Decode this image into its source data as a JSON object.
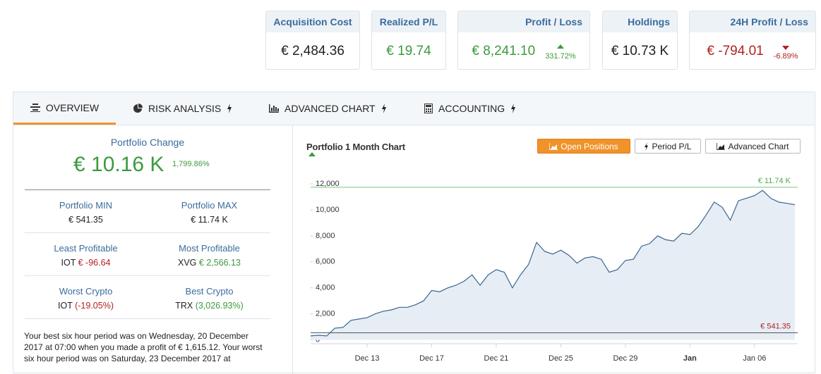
{
  "cards": [
    {
      "title": "Acquisition Cost",
      "value": "€ 2,484.36",
      "tone": "neutral"
    },
    {
      "title": "Realized P/L",
      "value": "€ 19.74",
      "tone": "up"
    },
    {
      "title": "Profit / Loss",
      "value": "€ 8,241.10",
      "change": "331.72%",
      "tone": "up"
    },
    {
      "title": "Holdings",
      "value": "€ 10.73 K",
      "tone": "neutral"
    },
    {
      "title": "24H Profit / Loss",
      "value": "€ -794.01",
      "change": "-6.89%",
      "tone": "down"
    }
  ],
  "tabs": [
    {
      "label": "OVERVIEW",
      "active": true
    },
    {
      "label": "RISK ANALYSIS",
      "active": false
    },
    {
      "label": "ADVANCED CHART",
      "active": false
    },
    {
      "label": "ACCOUNTING",
      "active": false
    }
  ],
  "overview": {
    "change_title": "Portfolio Change",
    "change_value": "€ 10.16 K",
    "change_percent": "1,799.86%",
    "stats": [
      {
        "label": "Portfolio MIN",
        "value": "€ 541.35"
      },
      {
        "label": "Portfolio MAX",
        "value": "€ 11.74 K"
      },
      {
        "label": "Least Profitable",
        "coin": "IOT",
        "value": "€ -96.64",
        "tone": "down"
      },
      {
        "label": "Most Profitable",
        "coin": "XVG",
        "value": "€ 2,566.13",
        "tone": "up"
      },
      {
        "label": "Worst Crypto",
        "coin": "IOT",
        "value": "(-19.05%)",
        "tone": "down"
      },
      {
        "label": "Best Crypto",
        "coin": "TRX",
        "value": "(3,026.93%)",
        "tone": "up"
      }
    ],
    "summary": "Your best six hour period was on Wednesday, 20 December 2017 at 07:00 when you made a profit of € 1,615.12. Your worst six hour period was on Saturday, 23 December 2017 at"
  },
  "chart_buttons": [
    {
      "label": "Open Positions",
      "active": true
    },
    {
      "label": "Period P/L",
      "active": false
    },
    {
      "label": "Advanced Chart",
      "active": false
    }
  ],
  "chart_data": {
    "type": "area",
    "title": "Portfolio 1 Month Chart",
    "color": "#3b6591",
    "fill": "#e6edf5",
    "x": [
      9.5,
      10,
      10.5,
      11,
      11.5,
      12,
      12.5,
      13,
      13.5,
      14,
      14.5,
      15,
      15.5,
      16,
      16.5,
      17,
      17.5,
      18,
      18.5,
      19,
      19.5,
      20,
      20.5,
      21,
      21.5,
      22,
      22.5,
      23,
      23.5,
      24,
      24.5,
      25,
      25.5,
      26,
      26.5,
      27,
      27.5,
      28,
      28.5,
      29,
      29.5,
      30,
      30.5,
      31,
      31.5,
      32,
      32.5,
      33,
      33.5,
      34,
      34.5,
      35,
      35.5,
      36,
      36.5,
      37,
      37.5,
      38,
      38.5,
      39,
      39.5
    ],
    "values": [
      300,
      350,
      300,
      900,
      950,
      1500,
      1600,
      1700,
      2000,
      2200,
      2300,
      2500,
      2500,
      2700,
      3000,
      3800,
      3700,
      4000,
      4200,
      4500,
      5000,
      4200,
      5000,
      5400,
      5200,
      4000,
      5000,
      5800,
      7500,
      6800,
      6600,
      6900,
      6500,
      5900,
      6300,
      6400,
      6200,
      5200,
      5400,
      6100,
      6200,
      7200,
      7400,
      8000,
      7700,
      7600,
      8200,
      8100,
      8700,
      9600,
      10600,
      10200,
      9200,
      10700,
      10900,
      11100,
      11500,
      10900,
      10600,
      10500,
      10400
    ],
    "xlim": [
      9.5,
      39.5
    ],
    "xticks": [
      {
        "value": 13,
        "label": "Dec 13"
      },
      {
        "value": 17,
        "label": "Dec 17"
      },
      {
        "value": 21,
        "label": "Dec 21"
      },
      {
        "value": 25,
        "label": "Dec 25"
      },
      {
        "value": 29,
        "label": "Dec 29"
      },
      {
        "value": 33,
        "label": "Jan"
      },
      {
        "value": 37,
        "label": "Jan 06"
      }
    ],
    "ylim": [
      -300,
      12600
    ],
    "yticks": [
      0,
      {
        "value": 2000,
        "label": "2,000"
      },
      {
        "value": 4000,
        "label": "4,000"
      },
      {
        "value": 6000,
        "label": "6,000"
      },
      {
        "value": 8000,
        "label": "8,000"
      },
      {
        "value": 10000,
        "label": "10,000"
      },
      {
        "value": 12000,
        "label": "12,000"
      }
    ],
    "plot_lines": [
      {
        "value": 11740,
        "label": "€ 11.74 K",
        "color": "#7cc47c",
        "label_color": "#4caa4c"
      },
      {
        "value": 541.35,
        "label": "€ 541.35",
        "color": "#555555",
        "label_color": "#b22222"
      }
    ]
  }
}
